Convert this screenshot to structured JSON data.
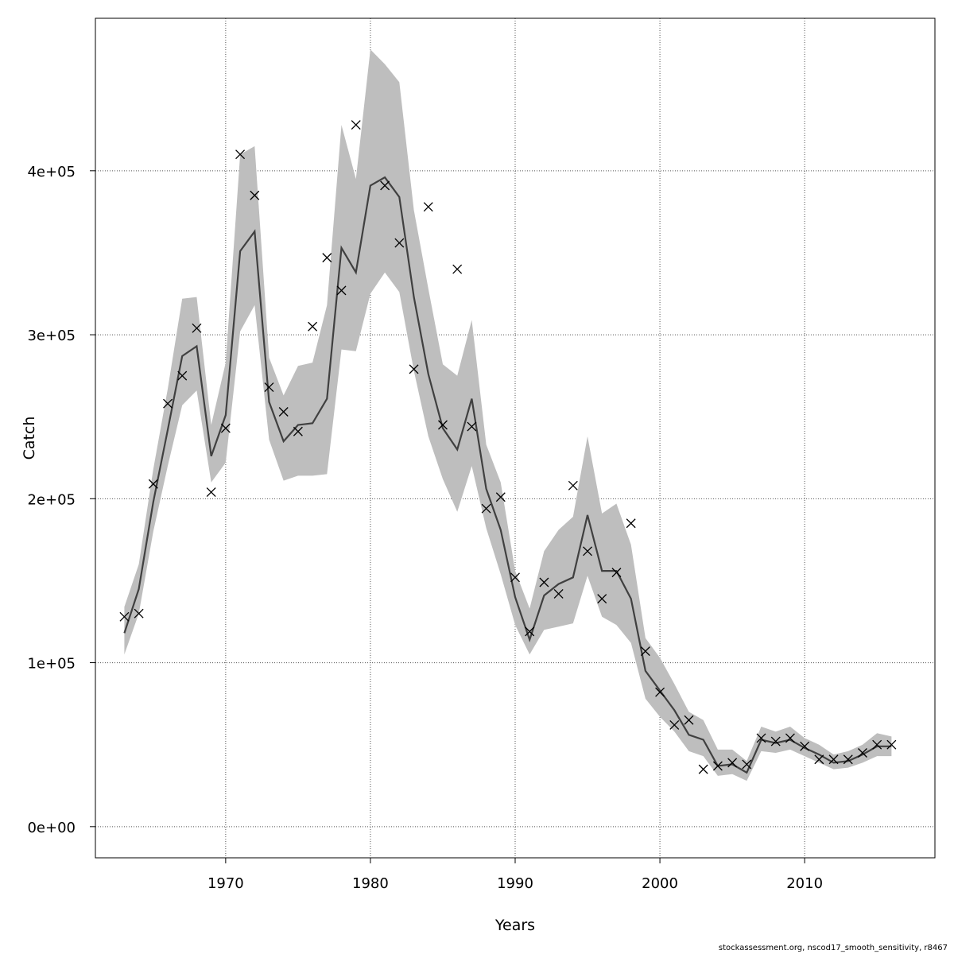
{
  "chart_data": {
    "type": "line",
    "xlabel": "Years",
    "ylabel": "Catch",
    "xlim": [
      1961,
      2019
    ],
    "ylim": [
      -19000,
      493000
    ],
    "x_ticks": [
      1970,
      1980,
      1990,
      2000,
      2010
    ],
    "x_tick_labels": [
      "1970",
      "1980",
      "1990",
      "2000",
      "2010"
    ],
    "y_ticks": [
      0,
      100000,
      200000,
      300000,
      400000
    ],
    "y_tick_labels": [
      "0e+00",
      "1e+05",
      "2e+05",
      "3e+05",
      "4e+05"
    ],
    "grid": true,
    "grid_style": "dotted",
    "colors": {
      "band": "#bebebe",
      "line": "#404040",
      "points": "#000000",
      "grid": "#555555"
    },
    "years": [
      1963,
      1964,
      1965,
      1966,
      1967,
      1968,
      1969,
      1970,
      1971,
      1972,
      1973,
      1974,
      1975,
      1976,
      1977,
      1978,
      1979,
      1980,
      1981,
      1982,
      1983,
      1984,
      1985,
      1986,
      1987,
      1988,
      1989,
      1990,
      1991,
      1992,
      1993,
      1994,
      1995,
      1996,
      1997,
      1998,
      1999,
      2000,
      2001,
      2002,
      2003,
      2004,
      2005,
      2006,
      2007,
      2008,
      2009,
      2010,
      2011,
      2012,
      2013,
      2014,
      2015,
      2016
    ],
    "series": [
      {
        "kind": "estimate",
        "values": [
          118000,
          145000,
          198000,
          242000,
          287000,
          293000,
          226000,
          251000,
          351000,
          363000,
          259000,
          235000,
          245000,
          246000,
          261000,
          353000,
          338000,
          391000,
          396000,
          384000,
          323000,
          276000,
          243000,
          230000,
          261000,
          206000,
          181000,
          140000,
          114000,
          141000,
          148000,
          152000,
          190000,
          156000,
          156000,
          139000,
          95000,
          83000,
          71000,
          56000,
          53000,
          37000,
          38000,
          33000,
          53000,
          51000,
          53000,
          48000,
          44000,
          39000,
          40000,
          44000,
          49000,
          49000
        ]
      },
      {
        "kind": "upper",
        "values": [
          134000,
          160000,
          218000,
          267000,
          322000,
          323000,
          245000,
          283000,
          410000,
          415000,
          286000,
          263000,
          281000,
          283000,
          318000,
          428000,
          395000,
          474000,
          465000,
          454000,
          376000,
          328000,
          282000,
          275000,
          309000,
          233000,
          210000,
          156000,
          133000,
          168000,
          181000,
          189000,
          238000,
          191000,
          197000,
          172000,
          115000,
          103000,
          87000,
          70000,
          65000,
          47000,
          47000,
          40000,
          61000,
          58000,
          61000,
          54000,
          50000,
          44000,
          46000,
          50000,
          57000,
          55000
        ]
      },
      {
        "kind": "lower",
        "values": [
          105000,
          130000,
          180000,
          220000,
          257000,
          266000,
          210000,
          222000,
          302000,
          318000,
          236000,
          211000,
          214000,
          214000,
          215000,
          291000,
          290000,
          325000,
          338000,
          326000,
          278000,
          238000,
          212000,
          192000,
          220000,
          182000,
          154000,
          123000,
          105000,
          120000,
          122000,
          124000,
          153000,
          128000,
          123000,
          112000,
          78000,
          67000,
          58000,
          46000,
          43000,
          31000,
          32000,
          28000,
          46000,
          45000,
          47000,
          43000,
          39000,
          35000,
          36000,
          39000,
          43000,
          43000
        ]
      },
      {
        "kind": "observed",
        "values": [
          128000,
          130000,
          209000,
          258000,
          275000,
          304000,
          204000,
          243000,
          410000,
          385000,
          268000,
          253000,
          241000,
          305000,
          347000,
          327000,
          428000,
          null,
          391000,
          356000,
          279000,
          378000,
          245000,
          340000,
          244000,
          194000,
          201000,
          152000,
          119000,
          149000,
          142000,
          208000,
          168000,
          139000,
          155000,
          185000,
          107000,
          82000,
          62000,
          65000,
          35000,
          37000,
          39000,
          38000,
          54000,
          52000,
          54000,
          49000,
          41000,
          41000,
          41000,
          45000,
          50000,
          50000
        ]
      }
    ]
  },
  "footer": {
    "note": "stockassessment.org, nscod17_smooth_sensitivity, r8467"
  }
}
